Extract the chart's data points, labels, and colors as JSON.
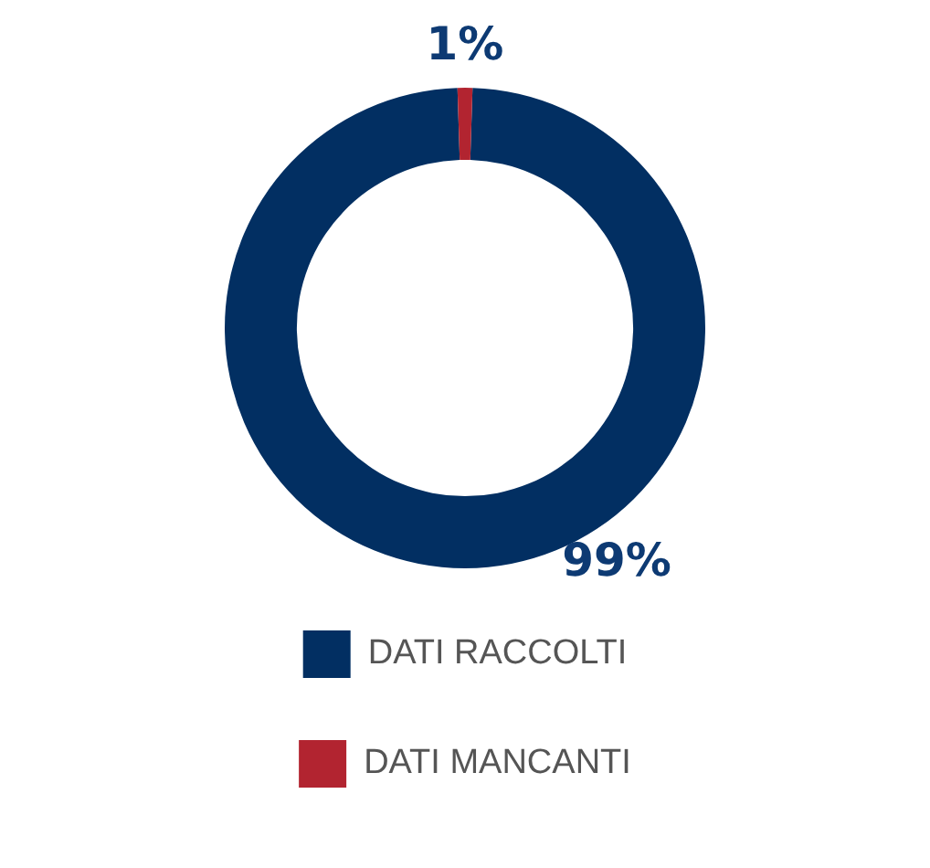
{
  "chart_data": {
    "type": "donut",
    "categories": [
      "DATI RACCOLTI",
      "DATI MANCANTI"
    ],
    "values": [
      99,
      1
    ],
    "colors": [
      "#022f62",
      "#b22430"
    ],
    "value_labels": [
      "99%",
      "1%"
    ],
    "legend": "bottom"
  }
}
